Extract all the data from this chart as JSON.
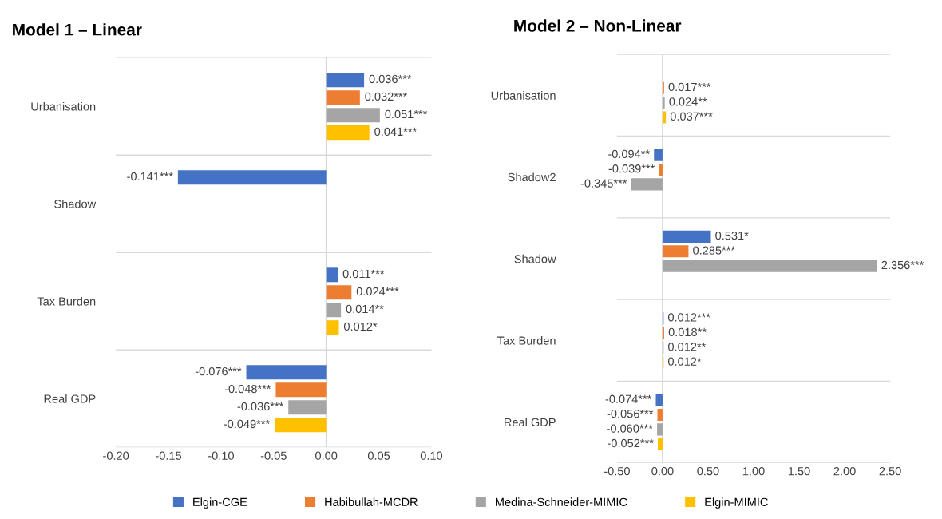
{
  "chart_data": [
    {
      "type": "bar",
      "orientation": "horizontal",
      "title": "Model 1 – Linear",
      "categories": [
        "Urbanisation",
        "Shadow",
        "Tax Burden",
        "Real GDP"
      ],
      "series": [
        {
          "name": "Elgin-CGE",
          "color": "#4472c4",
          "values": [
            0.036,
            -0.141,
            0.011,
            -0.076
          ],
          "value_labels": [
            "0.036***",
            "-0.141***",
            "0.011***",
            "-0.076***"
          ]
        },
        {
          "name": "Habibullah-MCDR",
          "color": "#ed7d31",
          "values": [
            0.032,
            null,
            0.024,
            -0.048
          ],
          "value_labels": [
            "0.032***",
            null,
            "0.024***",
            "-0.048***"
          ]
        },
        {
          "name": "Medina-Schneider-MIMIC",
          "color": "#a5a5a5",
          "values": [
            0.051,
            null,
            0.014,
            -0.036
          ],
          "value_labels": [
            "0.051***",
            null,
            "0.014**",
            "-0.036***"
          ]
        },
        {
          "name": "Elgin-MIMIC",
          "color": "#ffc000",
          "values": [
            0.041,
            null,
            0.012,
            -0.049
          ],
          "value_labels": [
            "0.041***",
            null,
            "0.012*",
            "-0.049***"
          ]
        }
      ],
      "xlim": [
        -0.2,
        0.1
      ],
      "xticks": [
        {
          "value": -0.2,
          "label": "-0.20"
        },
        {
          "value": -0.15,
          "label": "-0.15"
        },
        {
          "value": -0.1,
          "label": "-0.10"
        },
        {
          "value": -0.05,
          "label": "-0.05"
        },
        {
          "value": 0,
          "label": "0.00"
        },
        {
          "value": 0.05,
          "label": "0.05"
        },
        {
          "value": 0.1,
          "label": "0.10"
        }
      ],
      "grid": "y",
      "legend": "bottom",
      "ref_lines": [
        {
          "axis": "x",
          "value": 0,
          "color": "#d9d9d9"
        }
      ]
    },
    {
      "type": "bar",
      "orientation": "horizontal",
      "title": "Model 2 – Non-Linear",
      "categories": [
        "Urbanisation",
        "Shadow2",
        "Shadow",
        "Tax Burden",
        "Real GDP"
      ],
      "series": [
        {
          "name": "Elgin-CGE",
          "color": "#4472c4",
          "values": [
            null,
            -0.094,
            0.531,
            0.012,
            -0.074
          ],
          "value_labels": [
            null,
            "-0.094**",
            "0.531*",
            "0.012***",
            "-0.074***"
          ]
        },
        {
          "name": "Habibullah-MCDR",
          "color": "#ed7d31",
          "values": [
            0.017,
            -0.039,
            0.285,
            0.018,
            -0.056
          ],
          "value_labels": [
            "0.017***",
            "-0.039***",
            "0.285***",
            "0.018**",
            "-0.056***"
          ]
        },
        {
          "name": "Medina-Schneider-MIMIC",
          "color": "#a5a5a5",
          "values": [
            0.024,
            -0.345,
            2.356,
            0.012,
            -0.06
          ],
          "value_labels": [
            "0.024**",
            "-0.345***",
            "2.356***",
            "0.012**",
            "-0.060***"
          ]
        },
        {
          "name": "Elgin-MIMIC",
          "color": "#ffc000",
          "values": [
            0.037,
            null,
            null,
            0.012,
            -0.052
          ],
          "value_labels": [
            "0.037***",
            null,
            null,
            "0.012*",
            "-0.052***"
          ]
        }
      ],
      "xlim": [
        -0.5,
        2.5
      ],
      "xticks": [
        {
          "value": -0.5,
          "label": "-0.50"
        },
        {
          "value": 0,
          "label": "0.00"
        },
        {
          "value": 0.5,
          "label": "0.50"
        },
        {
          "value": 1,
          "label": "1.00"
        },
        {
          "value": 1.5,
          "label": "1.50"
        },
        {
          "value": 2,
          "label": "2.00"
        },
        {
          "value": 2.5,
          "label": "2.50"
        }
      ],
      "grid": "y",
      "legend": "bottom",
      "ref_lines": [
        {
          "axis": "x",
          "value": 0,
          "color": "#d9d9d9"
        }
      ]
    }
  ]
}
